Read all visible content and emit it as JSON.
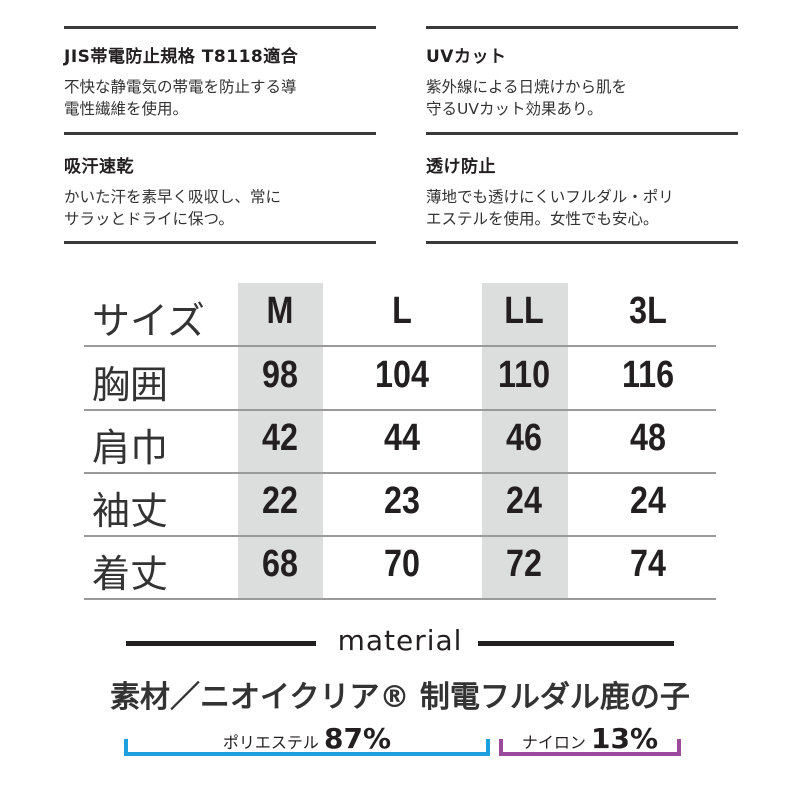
{
  "features": [
    {
      "title": "JIS帯電防止規格 T8118適合",
      "desc": "不快な静電気の帯電を防止する導\n電性繊維を使用。"
    },
    {
      "title": "UVカット",
      "desc": "紫外線による日焼けから肌を\n守るUVカット効果あり。"
    },
    {
      "title": "吸汗速乾",
      "desc": "かいた汗を素早く吸収し、常に\nサラッとドライに保つ。"
    },
    {
      "title": "透け防止",
      "desc": "薄地でも透けにくいフルダル・ポリ\nエステルを使用。女性でも安心。"
    }
  ],
  "size_table": {
    "header": [
      "サイズ",
      "M",
      "L",
      "LL",
      "3L"
    ],
    "rows": [
      [
        "胸囲",
        "98",
        "104",
        "110",
        "116"
      ],
      [
        "肩巾",
        "42",
        "44",
        "46",
        "48"
      ],
      [
        "袖丈",
        "22",
        "23",
        "24",
        "24"
      ],
      [
        "着丈",
        "68",
        "70",
        "72",
        "74"
      ]
    ],
    "highlight_color": "#dcdddd"
  },
  "material": {
    "heading": "material",
    "fabric": "素材／ニオイクリア® 制電フルダル鹿の子",
    "components": [
      {
        "name": "ポリエステル",
        "percent": "87%",
        "color": "#1ea0dc"
      },
      {
        "name": "ナイロン",
        "percent": "13%",
        "color": "#9b4a9b"
      }
    ]
  }
}
